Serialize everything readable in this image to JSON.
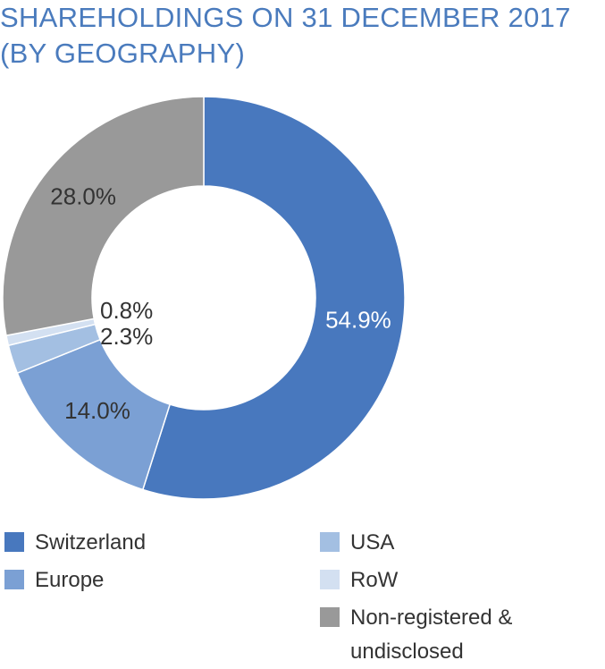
{
  "chart_data": {
    "type": "donut",
    "title": "SHAREHOLDINGS ON 31 DECEMBER 2017 (BY GEOGRAPHY)",
    "categories": [
      "Switzerland",
      "Europe",
      "USA",
      "RoW",
      "Non-registered & undisclosed"
    ],
    "values": [
      54.9,
      14.0,
      2.3,
      0.8,
      28.0
    ],
    "value_labels": [
      "54.9%",
      "14.0%",
      "2.3%",
      "0.8%",
      "28.0%"
    ],
    "colors": [
      "#4878be",
      "#7ba0d4",
      "#a3bfe2",
      "#d3e0f1",
      "#999999"
    ]
  }
}
